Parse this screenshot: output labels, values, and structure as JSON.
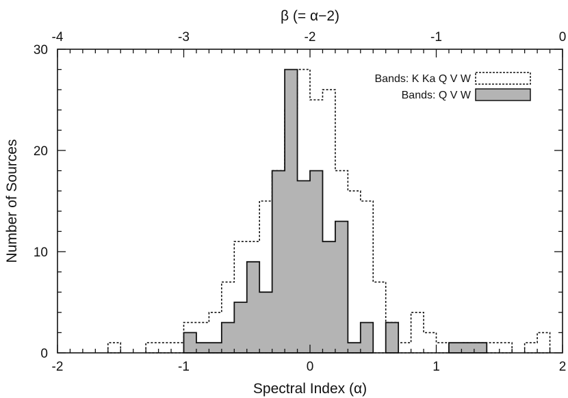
{
  "chart_data": {
    "type": "histogram",
    "title": "",
    "xlabel": "Spectral Index (α)",
    "ylabel": "Number of Sources",
    "top_xlabel": "β (= α−2)",
    "xlim": [
      -2,
      2
    ],
    "ylim": [
      0,
      30
    ],
    "top_xlim": [
      -4,
      0
    ],
    "x_ticks": [
      "-2",
      "-1",
      "0",
      "1",
      "2"
    ],
    "y_ticks": [
      "0",
      "10",
      "20",
      "30"
    ],
    "top_x_ticks": [
      "-4",
      "-3",
      "-2",
      "-1",
      "0"
    ],
    "legend_position": "top-right",
    "bin_width": 0.1,
    "bin_start": -1.6,
    "series": [
      {
        "name": "Bands: K Ka Q V W",
        "style": "dotted outline",
        "values": [
          1,
          0,
          0,
          1,
          1,
          1,
          3,
          3,
          4,
          7,
          11,
          11,
          15,
          18,
          24,
          28,
          25,
          26,
          18,
          16,
          15,
          7,
          3,
          1,
          4,
          2,
          1,
          0,
          1,
          1,
          1,
          1,
          0,
          1,
          2
        ]
      },
      {
        "name": "Bands: Q V W",
        "style": "gray filled",
        "values": [
          0,
          0,
          0,
          0,
          0,
          0,
          2,
          1,
          1,
          3,
          5,
          9,
          6,
          18,
          28,
          17,
          18,
          11,
          13,
          1,
          3,
          0,
          3,
          0,
          0,
          0,
          0,
          1,
          1,
          1,
          0,
          0,
          0,
          0,
          0
        ]
      }
    ],
    "colors": {
      "fill": "#b4b4b4",
      "line": "#111111"
    }
  }
}
